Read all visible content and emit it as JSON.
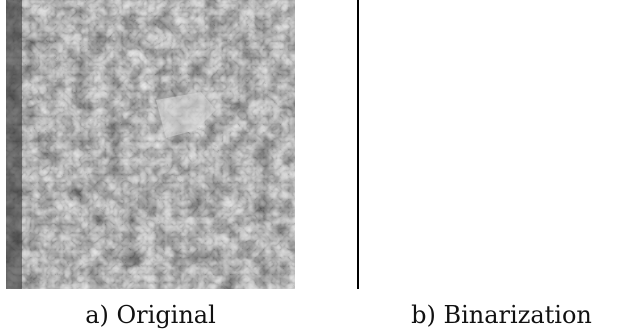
{
  "panels": [
    {
      "caption": "a) Original"
    },
    {
      "caption": "b) Binarization"
    }
  ]
}
